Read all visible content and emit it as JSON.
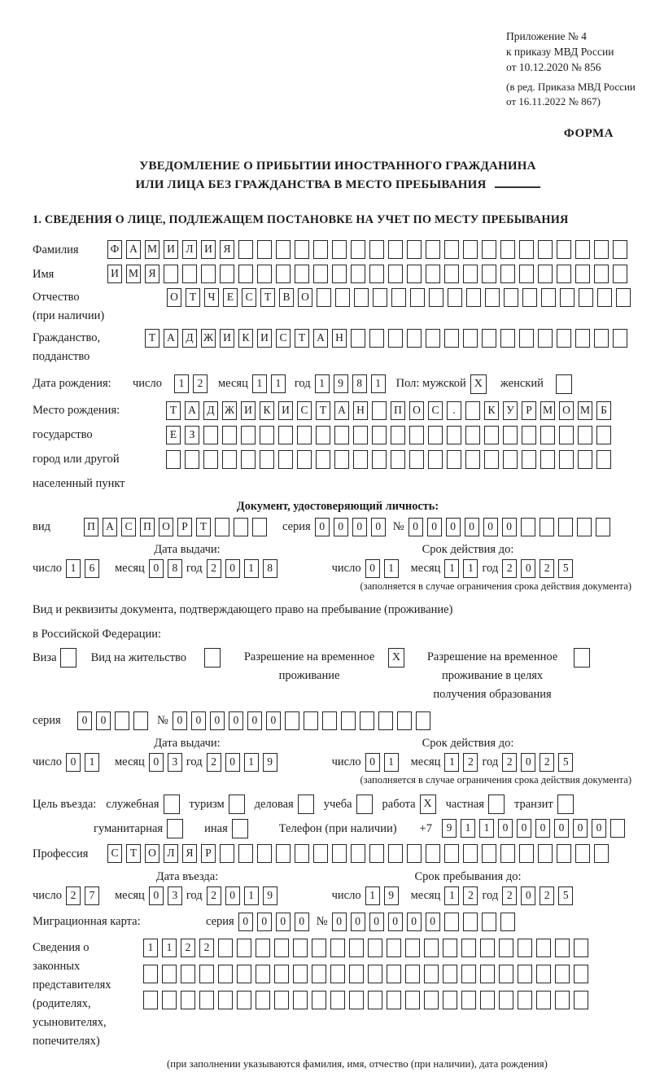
{
  "doc": {
    "appendix_lines": [
      "Приложение № 4",
      "к приказу МВД России",
      "от 10.12.2020 № 856"
    ],
    "amendment_lines": [
      "(в ред. Приказа МВД России",
      "от 16.11.2022 № 867)"
    ],
    "form_label": "ФОРМА",
    "title_line1": "УВЕДОМЛЕНИЕ О ПРИБЫТИИ ИНОСТРАННОГО ГРАЖДАНИНА",
    "title_line2": "ИЛИ ЛИЦА БЕЗ ГРАЖДАНСТВА В МЕСТО ПРЕБЫВАНИЯ",
    "section1_heading": "1. СВЕДЕНИЯ О ЛИЦЕ, ПОДЛЕЖАЩЕМ ПОСТАНОВКЕ НА УЧЕТ ПО МЕСТУ ПРЕБЫВАНИЯ"
  },
  "labels": {
    "surname": "Фамилия",
    "name": "Имя",
    "patronymic": "Отчество",
    "patronymic_note": "(при наличии)",
    "citizenship1": "Гражданство,",
    "citizenship2": "подданство",
    "birth_date": "Дата рождения:",
    "day": "число",
    "month": "месяц",
    "year": "год",
    "sex": "Пол: мужской",
    "female": "женский",
    "birth_place": "Место рождения:",
    "state": "государство",
    "city1": "город или другой",
    "city2": "населенный пункт",
    "identity_doc": "Документ, удостоверяющий личность:",
    "kind": "вид",
    "series": "серия",
    "number_sign": "№",
    "issue_date": "Дата выдачи:",
    "valid_until": "Срок действия до:",
    "valid_note": "(заполняется в случае ограничения срока действия документа)",
    "resid_doc1": "Вид и реквизиты документа, подтверждающего право на пребывание (проживание)",
    "resid_doc2": "в Российской Федерации:",
    "visa": "Виза",
    "residence_permit": "Вид на жительство",
    "temp_permit1": "Разрешение на временное",
    "temp_permit2": "проживание",
    "edu_permit1": "Разрешение на временное",
    "edu_permit2": "проживание в целях",
    "edu_permit3": "получения образования",
    "purpose": "Цель въезда:",
    "purpose_items_row1": [
      "служебная",
      "туризм",
      "деловая",
      "учеба",
      "работа",
      "частная",
      "транзит"
    ],
    "purpose_items_row2": [
      "гуманитарная",
      "иная"
    ],
    "phone": "Телефон (при наличии)",
    "phone_prefix": "+7",
    "profession": "Профессия",
    "entry_date": "Дата въезда:",
    "stay_until": "Срок пребывания до:",
    "migration_card": "Миграционная карта:",
    "guardians_lines": [
      "Сведения о",
      "законных",
      "представителях",
      "(родителях,",
      "усыновителях,",
      "попечителях)"
    ],
    "guardians_note": "(при заполнении указываются фамилия, имя, отчество (при наличии), дата рождения)"
  },
  "checks": {
    "male": "X",
    "female": "",
    "visa": "",
    "residence_permit": "",
    "temp_permit": "X",
    "edu_permit": "",
    "purpose_row1": [
      "",
      "",
      "",
      "",
      "X",
      "",
      ""
    ],
    "purpose_row2": [
      "",
      ""
    ]
  },
  "cells": {
    "surname": {
      "text": "ФАМИЛИЯ",
      "count": 28
    },
    "name": {
      "text": "ИМЯ",
      "count": 28
    },
    "patronymic": {
      "text": "ОТЧЕСТВО",
      "count": 25
    },
    "citizenship": {
      "text": "ТАДЖИКИСТАН",
      "count": 26
    },
    "birth_day": {
      "text": "12",
      "count": 2
    },
    "birth_month": {
      "text": "11",
      "count": 2
    },
    "birth_year": {
      "text": "1981",
      "count": 4
    },
    "birth_place_row1": {
      "text": "ТАДЖИКИСТАН ПОС. КУРМОМБ",
      "count": 24
    },
    "birth_place_row2": {
      "text": "ЕЗ",
      "count": 24
    },
    "birth_place_row3": {
      "text": "",
      "count": 24
    },
    "doc_kind": {
      "text": "ПАСПОРТ",
      "count": 10
    },
    "doc_series": {
      "text": "0000",
      "count": 4
    },
    "doc_number": {
      "text": "000000",
      "count": 11
    },
    "doc_issue_day": {
      "text": "16",
      "count": 2
    },
    "doc_issue_month": {
      "text": "08",
      "count": 2
    },
    "doc_issue_year": {
      "text": "2018",
      "count": 4
    },
    "doc_valid_day": {
      "text": "01",
      "count": 2
    },
    "doc_valid_month": {
      "text": "11",
      "count": 2
    },
    "doc_valid_year": {
      "text": "2025",
      "count": 4
    },
    "permit_series": {
      "text": "00",
      "count": 4
    },
    "permit_number": {
      "text": "000000",
      "count": 14
    },
    "permit_issue_day": {
      "text": "01",
      "count": 2
    },
    "permit_issue_month": {
      "text": "03",
      "count": 2
    },
    "permit_issue_year": {
      "text": "2019",
      "count": 4
    },
    "permit_valid_day": {
      "text": "01",
      "count": 2
    },
    "permit_valid_month": {
      "text": "12",
      "count": 2
    },
    "permit_valid_year": {
      "text": "2025",
      "count": 4
    },
    "phone": {
      "text": "911000000",
      "count": 10
    },
    "profession": {
      "text": "СТОЛЯР",
      "count": 27
    },
    "entry_day": {
      "text": "27",
      "count": 2
    },
    "entry_month": {
      "text": "03",
      "count": 2
    },
    "entry_year": {
      "text": "2019",
      "count": 4
    },
    "stay_day": {
      "text": "19",
      "count": 2
    },
    "stay_month": {
      "text": "12",
      "count": 2
    },
    "stay_year": {
      "text": "2025",
      "count": 4
    },
    "mig_series": {
      "text": "0000",
      "count": 4
    },
    "mig_number": {
      "text": "000000",
      "count": 10
    },
    "guardians_row1": {
      "text": "1122",
      "count": 24
    },
    "guardians_row2": {
      "text": "",
      "count": 24
    },
    "guardians_row3": {
      "text": "",
      "count": 24
    }
  }
}
